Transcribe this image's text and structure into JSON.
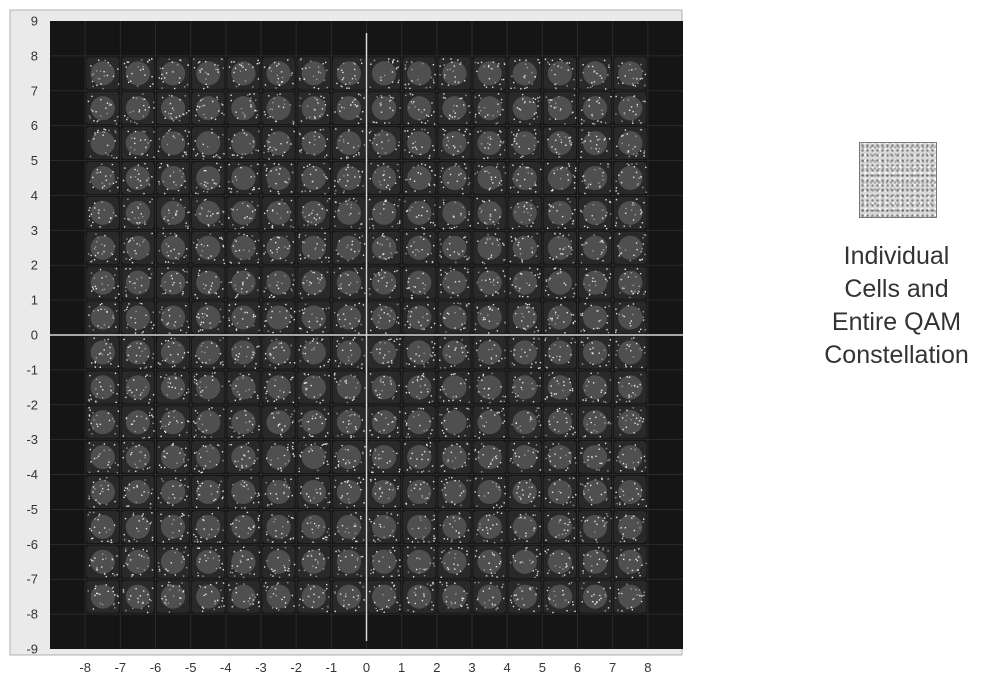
{
  "chart_data": {
    "type": "scatter",
    "title": "",
    "xlabel": "",
    "ylabel": "",
    "xlim": [
      -9,
      9
    ],
    "ylim": [
      -9,
      9
    ],
    "x_ticks": [
      "-8",
      "-7",
      "-6",
      "-5",
      "-4",
      "-3",
      "-2",
      "-1",
      "0",
      "1",
      "2",
      "3",
      "4",
      "5",
      "6",
      "7",
      "8"
    ],
    "y_ticks": [
      "9",
      "8",
      "7",
      "6",
      "5",
      "4",
      "3",
      "2",
      "1",
      "0",
      "-1",
      "-2",
      "-3",
      "-4",
      "-5",
      "-6",
      "-7",
      "-8",
      "-9"
    ],
    "constellation": {
      "i_levels": [
        -7.5,
        -6.5,
        -5.5,
        -4.5,
        -3.5,
        -2.5,
        -1.5,
        -0.5,
        0.5,
        1.5,
        2.5,
        3.5,
        4.5,
        5.5,
        6.5,
        7.5
      ],
      "q_levels": [
        -7.5,
        -6.5,
        -5.5,
        -4.5,
        -3.5,
        -2.5,
        -1.5,
        -0.5,
        0.5,
        1.5,
        2.5,
        3.5,
        4.5,
        5.5,
        6.5,
        7.5
      ],
      "points": 256,
      "cell_spread": 0.5
    },
    "grid": true,
    "plot_background": "#151515",
    "axis_line_color": "#d8d8d8"
  },
  "legend": {
    "lines": [
      "Individual",
      "Cells and",
      "Entire QAM",
      "Constellation"
    ]
  }
}
